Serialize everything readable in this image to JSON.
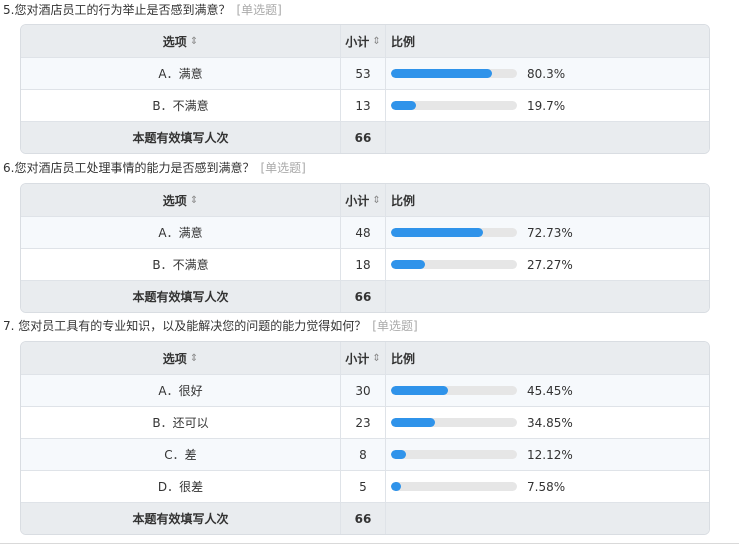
{
  "header_labels": {
    "option": "选项",
    "count": "小计",
    "ratio": "比例",
    "sort_glyph": "⇕"
  },
  "questions": [
    {
      "title": "5.您对酒店员工的行为举止是否感到满意？",
      "type": "[单选题]",
      "rows": [
        {
          "option": "A．满意",
          "count": "53",
          "percent": "80.3%",
          "fraction": 0.803
        },
        {
          "option": "B．不满意",
          "count": "13",
          "percent": "19.7%",
          "fraction": 0.197
        }
      ],
      "total_label": "本题有效填写人次",
      "total": "66"
    },
    {
      "title": "6.您对酒店员工处理事情的能力是否感到满意？",
      "type": "[单选题]",
      "rows": [
        {
          "option": "A．满意",
          "count": "48",
          "percent": "72.73%",
          "fraction": 0.7273
        },
        {
          "option": "B．不满意",
          "count": "18",
          "percent": "27.27%",
          "fraction": 0.2727
        }
      ],
      "total_label": "本题有效填写人次",
      "total": "66"
    },
    {
      "title": "7. 您对员工具有的专业知识，以及能解决您的问题的能力觉得如何？",
      "type": "[单选题]",
      "rows": [
        {
          "option": "A．很好",
          "count": "30",
          "percent": "45.45%",
          "fraction": 0.4545
        },
        {
          "option": "B．还可以",
          "count": "23",
          "percent": "34.85%",
          "fraction": 0.3485
        },
        {
          "option": "C．差",
          "count": "8",
          "percent": "12.12%",
          "fraction": 0.1212
        },
        {
          "option": "D．很差",
          "count": "5",
          "percent": "7.58%",
          "fraction": 0.0758
        }
      ],
      "total_label": "本题有效填写人次",
      "total": "66"
    }
  ],
  "colors": {
    "bar": "#2f93ea",
    "track": "#e6e6e6",
    "header_bg": "#e9ecef",
    "alt_row": "#f6f9fc"
  }
}
